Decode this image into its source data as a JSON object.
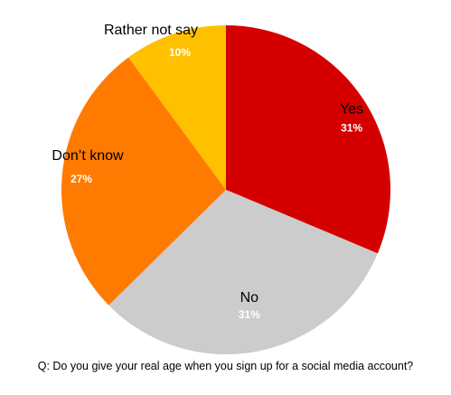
{
  "chart_data": {
    "type": "pie",
    "categories": [
      "Yes",
      "No",
      "Don’t know",
      "Rather not say"
    ],
    "values": [
      31,
      31,
      27,
      10
    ],
    "value_labels": [
      "31%",
      "31%",
      "27%",
      "10%"
    ],
    "colors": [
      "#d40000",
      "#cccccc",
      "#ff7a00",
      "#ffc000"
    ],
    "start_angle_deg": 0,
    "direction": "clockwise",
    "xlabel": "Q: Do you give your real age when you sign up for a social media account?"
  }
}
